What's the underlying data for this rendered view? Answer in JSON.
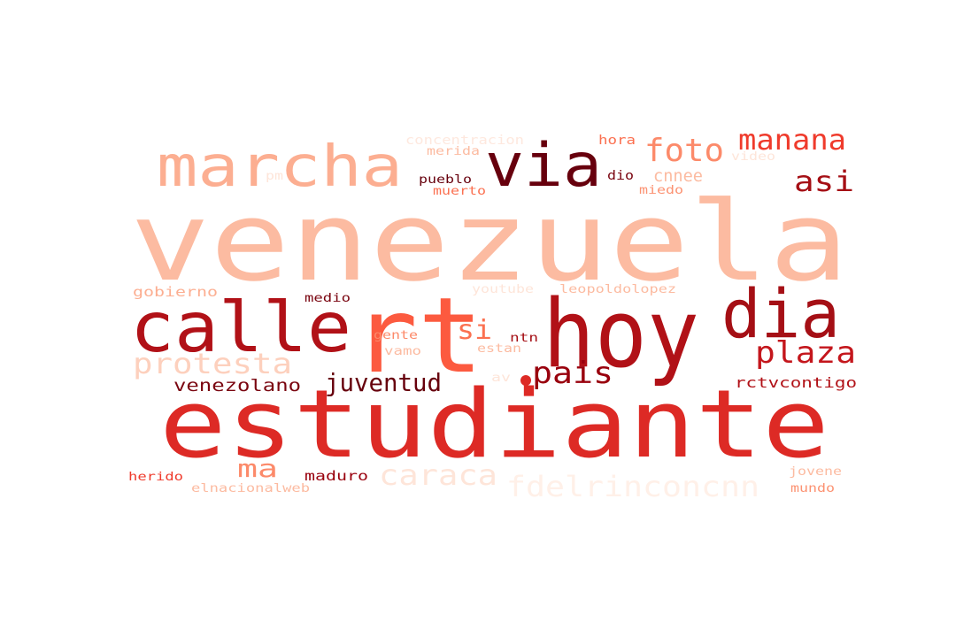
{
  "word_cloud": {
    "words": [
      {
        "text": "venezuela",
        "color": "#fcbba1"
      },
      {
        "text": "estudiante",
        "color": "#dd2a25"
      },
      {
        "text": "hoy",
        "color": "#b11117"
      },
      {
        "text": "rt",
        "color": "#fc5a3f"
      },
      {
        "text": "calle",
        "color": "#b11117"
      },
      {
        "text": "dia",
        "color": "#a50f15"
      },
      {
        "text": "marcha",
        "color": "#fcae91"
      },
      {
        "text": "via",
        "color": "#67000d"
      },
      {
        "text": "foto",
        "color": "#fc8a6a"
      },
      {
        "text": "manana",
        "color": "#ef3b2c"
      },
      {
        "text": "asi",
        "color": "#a50f15"
      },
      {
        "text": "plaza",
        "color": "#c4161c"
      },
      {
        "text": "pais",
        "color": "#99000d"
      },
      {
        "text": "protesta",
        "color": "#fdd0bd"
      },
      {
        "text": "juventud",
        "color": "#67000d"
      },
      {
        "text": "si",
        "color": "#fb7050"
      },
      {
        "text": "ma",
        "color": "#fc8a6a"
      },
      {
        "text": "caraca",
        "color": "#fee5d9"
      },
      {
        "text": "fdelrinconcnn",
        "color": "#fff0e8"
      },
      {
        "text": "venezolano",
        "color": "#7a0510"
      },
      {
        "text": "rctvcontigo",
        "color": "#b11117"
      },
      {
        "text": "cnnee",
        "color": "#fcbba1"
      },
      {
        "text": "concentracion",
        "color": "#fee8de"
      },
      {
        "text": "hora",
        "color": "#fb7050"
      },
      {
        "text": "dio",
        "color": "#7a0510"
      },
      {
        "text": "miedo",
        "color": "#fc9272"
      },
      {
        "text": "video",
        "color": "#fee5d9"
      },
      {
        "text": "merida",
        "color": "#fcbba1"
      },
      {
        "text": "pueblo",
        "color": "#67000d"
      },
      {
        "text": "muerto",
        "color": "#fb7050"
      },
      {
        "text": "pm",
        "color": "#fee5d9"
      },
      {
        "text": "gobierno",
        "color": "#fcae91"
      },
      {
        "text": "medio",
        "color": "#7a0510"
      },
      {
        "text": "youtube",
        "color": "#fee5d9"
      },
      {
        "text": "leopoldolopez",
        "color": "#fcbba1"
      },
      {
        "text": "gente",
        "color": "#fc8a6a"
      },
      {
        "text": "vamo",
        "color": "#fcbba1"
      },
      {
        "text": "ntn",
        "color": "#a50f15"
      },
      {
        "text": "estan",
        "color": "#fcbba1"
      },
      {
        "text": "av",
        "color": "#fee5d9"
      },
      {
        "text": "herido",
        "color": "#ef3b2c"
      },
      {
        "text": "maduro",
        "color": "#99000d"
      },
      {
        "text": "elnacionalweb",
        "color": "#fcbba1"
      },
      {
        "text": "jovene",
        "color": "#fcbba1"
      },
      {
        "text": "mundo",
        "color": "#fc9272"
      }
    ]
  }
}
